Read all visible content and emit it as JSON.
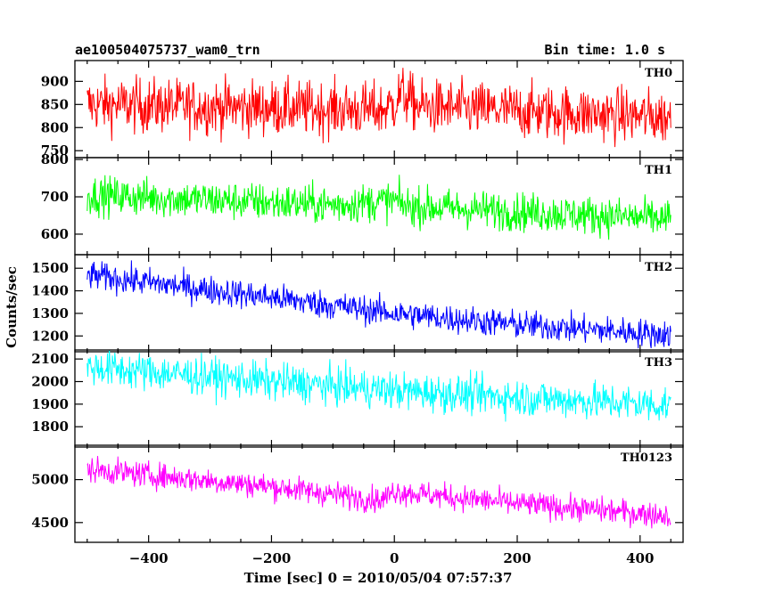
{
  "header": {
    "left_title": "ae100504075737_wam0_trn",
    "right_title": "Bin time: 1.0 s"
  },
  "axes": {
    "xlabel": "Time [sec] 0 = 2010/05/04 07:57:37",
    "ylabel": "Counts/sec"
  },
  "chart_data": {
    "type": "line",
    "title": "ae100504075737_wam0_trn",
    "bin_time": "Bin time: 1.0 s",
    "xlabel": "Time [sec] 0 = 2010/05/04 07:57:37",
    "ylabel": "Counts/sec",
    "xlim": [
      -520,
      470
    ],
    "x_range": [
      -500,
      450
    ],
    "x_ticks": [
      -400,
      -200,
      0,
      200,
      400
    ],
    "x_tick_labels": [
      "−400",
      "−200",
      "0",
      "200",
      "400"
    ],
    "panels": [
      {
        "name": "TH0",
        "color": "#ff0000",
        "ylim": [
          735,
          945
        ],
        "y_ticks": [
          750,
          800,
          850,
          900
        ],
        "y_tick_labels": [
          "750",
          "800",
          "850",
          "900"
        ],
        "trend": [
          [
            -500,
            850
          ],
          [
            -20,
            838
          ],
          [
            0,
            850
          ],
          [
            10,
            875
          ],
          [
            40,
            845
          ],
          [
            450,
            822
          ]
        ],
        "noise": 30
      },
      {
        "name": "TH1",
        "color": "#00ff00",
        "ylim": [
          545,
          805
        ],
        "y_ticks": [
          600,
          700,
          800
        ],
        "y_tick_labels": [
          "600",
          "700",
          "800"
        ],
        "trend": [
          [
            -500,
            705
          ],
          [
            -100,
            678
          ],
          [
            0,
            690
          ],
          [
            20,
            675
          ],
          [
            450,
            640
          ]
        ],
        "noise": 26
      },
      {
        "name": "TH2",
        "color": "#0000ff",
        "ylim": [
          1130,
          1560
        ],
        "y_ticks": [
          1200,
          1300,
          1400,
          1500
        ],
        "y_tick_labels": [
          "1200",
          "1300",
          "1400",
          "1500"
        ],
        "trend": [
          [
            -500,
            1470
          ],
          [
            -200,
            1370
          ],
          [
            0,
            1300
          ],
          [
            200,
            1250
          ],
          [
            450,
            1205
          ]
        ],
        "noise": 32
      },
      {
        "name": "TH3",
        "color": "#00ffff",
        "ylim": [
          1710,
          2140
        ],
        "y_ticks": [
          1800,
          1900,
          2000,
          2100
        ],
        "y_tick_labels": [
          "1800",
          "1900",
          "2000",
          "2100"
        ],
        "trend": [
          [
            -500,
            2065
          ],
          [
            -200,
            2000
          ],
          [
            0,
            1960
          ],
          [
            200,
            1930
          ],
          [
            450,
            1895
          ]
        ],
        "noise": 42
      },
      {
        "name": "TH0123",
        "color": "#ff00ff",
        "ylim": [
          4270,
          5400
        ],
        "y_ticks": [
          4500,
          5000
        ],
        "y_tick_labels": [
          "4500",
          "5000"
        ],
        "trend": [
          [
            -500,
            5120
          ],
          [
            -200,
            4920
          ],
          [
            -20,
            4760
          ],
          [
            0,
            4870
          ],
          [
            20,
            4850
          ],
          [
            200,
            4720
          ],
          [
            450,
            4580
          ]
        ],
        "noise": 75
      }
    ]
  }
}
